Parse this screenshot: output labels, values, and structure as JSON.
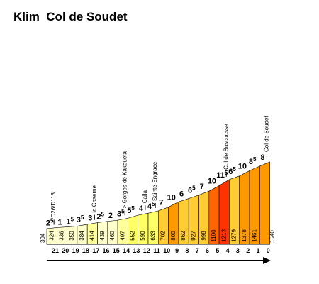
{
  "title": "Klim  Col de Soudet",
  "chart_data": {
    "type": "area",
    "title": "Klim  Col de Soudet",
    "xlabel": "",
    "ylabel": "",
    "km_labels": [
      "21",
      "20",
      "19",
      "18",
      "17",
      "16",
      "15",
      "14",
      "13",
      "12",
      "11",
      "10",
      "9",
      "8",
      "7",
      "6",
      "5",
      "4",
      "3",
      "2",
      "1",
      "0"
    ],
    "altitudes": [
      304,
      324,
      336,
      350,
      384,
      414,
      439,
      460,
      497,
      552,
      590,
      633,
      702,
      800,
      862,
      927,
      998,
      1100,
      1213,
      1279,
      1378,
      1461,
      1540
    ],
    "segments": [
      {
        "gradient": "2",
        "half": true,
        "color": "#ffffcc"
      },
      {
        "gradient": "1",
        "half": false,
        "color": "#ffffcc"
      },
      {
        "gradient": "1",
        "half": true,
        "color": "#ffffcc"
      },
      {
        "gradient": "3",
        "half": true,
        "color": "#ffffcc"
      },
      {
        "gradient": "3",
        "half": false,
        "color": "#ffff99"
      },
      {
        "gradient": "2",
        "half": true,
        "color": "#ffffcc"
      },
      {
        "gradient": "2",
        "half": false,
        "color": "#ffffcc"
      },
      {
        "gradient": "3",
        "half": true,
        "color": "#ffff99"
      },
      {
        "gradient": "5",
        "half": true,
        "color": "#ffff66"
      },
      {
        "gradient": "4",
        "half": false,
        "color": "#ffff66"
      },
      {
        "gradient": "4",
        "half": true,
        "color": "#ffff66"
      },
      {
        "gradient": "7",
        "half": false,
        "color": "#ffcc33"
      },
      {
        "gradient": "10",
        "half": false,
        "color": "#ff9900"
      },
      {
        "gradient": "6",
        "half": false,
        "color": "#ffcc33"
      },
      {
        "gradient": "6",
        "half": true,
        "color": "#ffcc33"
      },
      {
        "gradient": "7",
        "half": false,
        "color": "#ffcc33"
      },
      {
        "gradient": "10",
        "half": false,
        "color": "#ff6600"
      },
      {
        "gradient": "11",
        "half": true,
        "color": "#ff3300"
      },
      {
        "gradient": "6",
        "half": true,
        "color": "#ffcc33"
      },
      {
        "gradient": "10",
        "half": false,
        "color": "#ff9900"
      },
      {
        "gradient": "8",
        "half": true,
        "color": "#ff9900"
      },
      {
        "gradient": "8",
        "half": false,
        "color": "#ff9900"
      }
    ],
    "half_mark": "5",
    "waypoints": [
      {
        "label": "D26/D113",
        "km_index": 0
      },
      {
        "label": "la Caserne",
        "km_index": 4
      },
      {
        "label": "> Gorges de Kakoueta",
        "km_index": 7
      },
      {
        "label": "Calla",
        "km_index": 9
      },
      {
        "label": "Sainte-Engrace",
        "km_index": 10
      },
      {
        "label": "Col de Suscousse",
        "km_index": 17
      },
      {
        "label": "Col de Soudet",
        "km_index": 21
      }
    ],
    "arrow": "right"
  }
}
